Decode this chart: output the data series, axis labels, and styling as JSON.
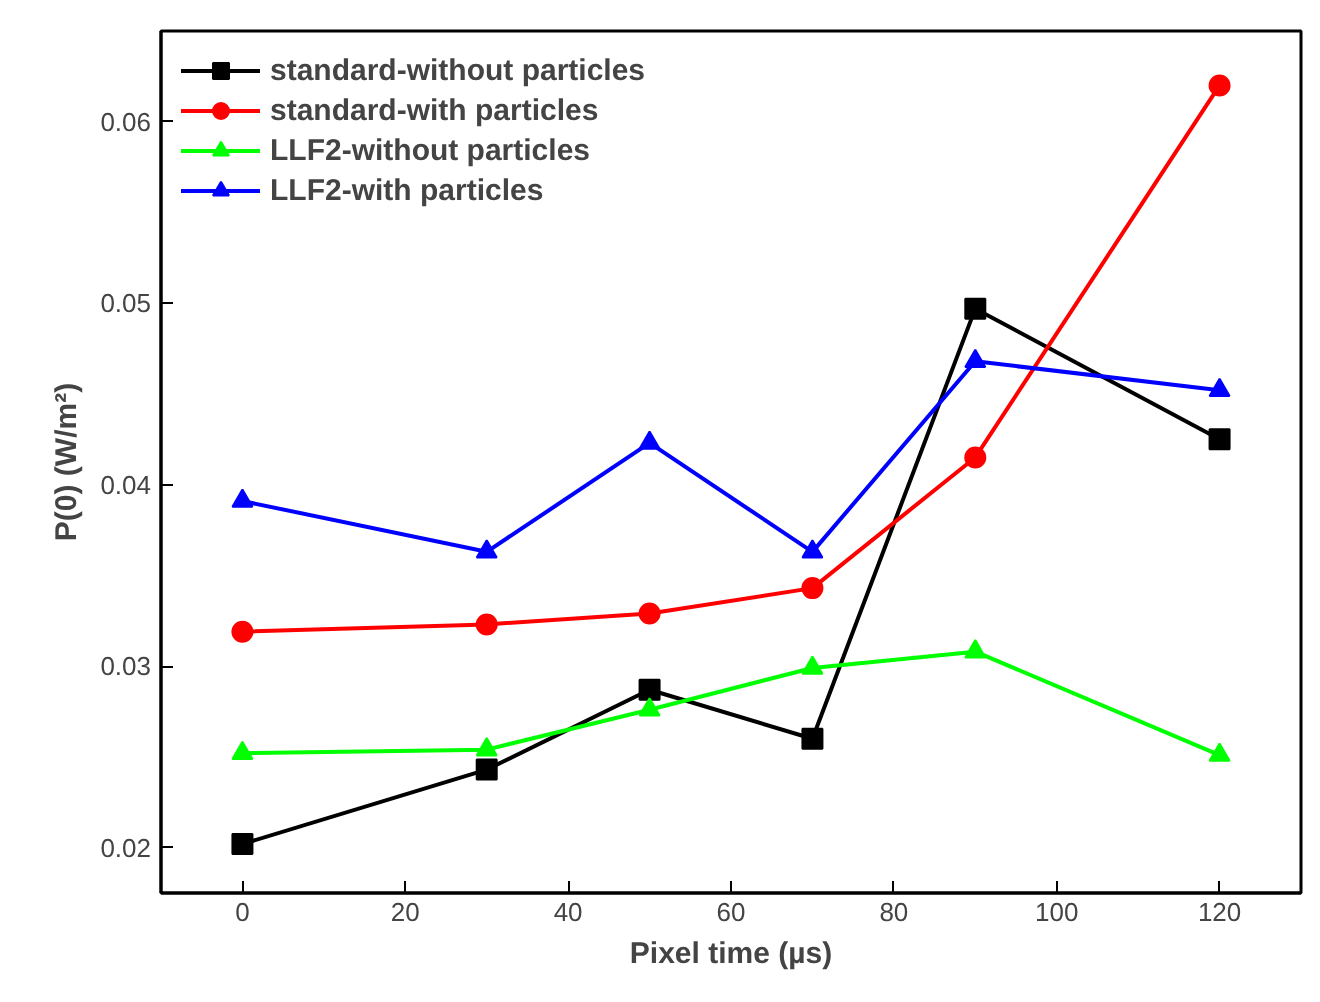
{
  "chart_data": {
    "type": "line",
    "xlabel": "Pixel time (µs)",
    "ylabel": "P(0) (W/m²)",
    "x": [
      0,
      30,
      50,
      70,
      90,
      120
    ],
    "xlim": [
      -10,
      130
    ],
    "ylim": [
      0.0175,
      0.065
    ],
    "xticks": [
      0,
      20,
      40,
      60,
      80,
      100,
      120
    ],
    "yticks": [
      0.02,
      0.03,
      0.04,
      0.05,
      0.06
    ],
    "grid": false,
    "legend": "top left",
    "line_style": "solid",
    "series": [
      {
        "name": "standard-without particles",
        "color": "#000000",
        "marker": "square",
        "values": [
          0.0202,
          0.0243,
          0.0287,
          0.026,
          0.0497,
          0.0425
        ]
      },
      {
        "name": "standard-with particles",
        "color": "#ff0000",
        "marker": "circle",
        "values": [
          0.0319,
          0.0323,
          0.0329,
          0.0343,
          0.0415,
          0.062
        ]
      },
      {
        "name": "LLF2-without particles",
        "color": "#00ff00",
        "marker": "triangle",
        "values": [
          0.0252,
          0.0254,
          0.0276,
          0.0299,
          0.0308,
          0.0251
        ]
      },
      {
        "name": "LLF2-with particles",
        "color": "#0000ff",
        "marker": "triangle",
        "values": [
          0.0391,
          0.0363,
          0.0423,
          0.0363,
          0.0468,
          0.0452
        ]
      }
    ]
  }
}
